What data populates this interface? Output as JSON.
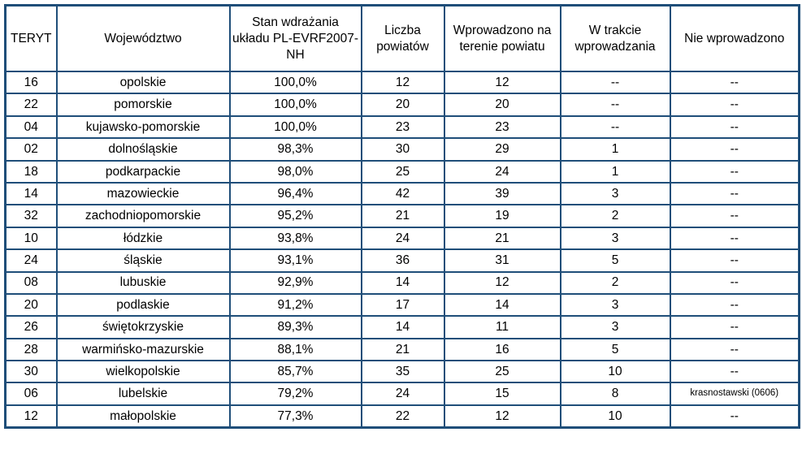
{
  "colors": {
    "border": "#1F4E79",
    "text": "#000000",
    "background": "#FFFFFF"
  },
  "table": {
    "columns": [
      {
        "key": "teryt",
        "label": "TERYT"
      },
      {
        "key": "wojewodztwo",
        "label": "Województwo"
      },
      {
        "key": "stan",
        "label": "Stan wdrażania układu PL-EVRF2007-NH"
      },
      {
        "key": "liczba",
        "label": "Liczba powiatów"
      },
      {
        "key": "wprowadzono",
        "label": "Wprowadzono na terenie powiatu"
      },
      {
        "key": "w_trakcie",
        "label": "W trakcie wprowadzania"
      },
      {
        "key": "nie_wprowadzono",
        "label": "Nie wprowadzono"
      }
    ],
    "rows": [
      [
        "16",
        "opolskie",
        "100,0%",
        "12",
        "12",
        "--",
        "--"
      ],
      [
        "22",
        "pomorskie",
        "100,0%",
        "20",
        "20",
        "--",
        "--"
      ],
      [
        "04",
        "kujawsko-pomorskie",
        "100,0%",
        "23",
        "23",
        "--",
        "--"
      ],
      [
        "02",
        "dolnośląskie",
        "98,3%",
        "30",
        "29",
        "1",
        "--"
      ],
      [
        "18",
        "podkarpackie",
        "98,0%",
        "25",
        "24",
        "1",
        "--"
      ],
      [
        "14",
        "mazowieckie",
        "96,4%",
        "42",
        "39",
        "3",
        "--"
      ],
      [
        "32",
        "zachodniopomorskie",
        "95,2%",
        "21",
        "19",
        "2",
        "--"
      ],
      [
        "10",
        "łódzkie",
        "93,8%",
        "24",
        "21",
        "3",
        "--"
      ],
      [
        "24",
        "śląskie",
        "93,1%",
        "36",
        "31",
        "5",
        "--"
      ],
      [
        "08",
        "lubuskie",
        "92,9%",
        "14",
        "12",
        "2",
        "--"
      ],
      [
        "20",
        "podlaskie",
        "91,2%",
        "17",
        "14",
        "3",
        "--"
      ],
      [
        "26",
        "świętokrzyskie",
        "89,3%",
        "14",
        "11",
        "3",
        "--"
      ],
      [
        "28",
        "warmińsko-mazurskie",
        "88,1%",
        "21",
        "16",
        "5",
        "--"
      ],
      [
        "30",
        "wielkopolskie",
        "85,7%",
        "35",
        "25",
        "10",
        "--"
      ],
      [
        "06",
        "lubelskie",
        "79,2%",
        "24",
        "15",
        "8",
        "krasnostawski (0606)"
      ],
      [
        "12",
        "małopolskie",
        "77,3%",
        "22",
        "12",
        "10",
        "--"
      ]
    ]
  }
}
